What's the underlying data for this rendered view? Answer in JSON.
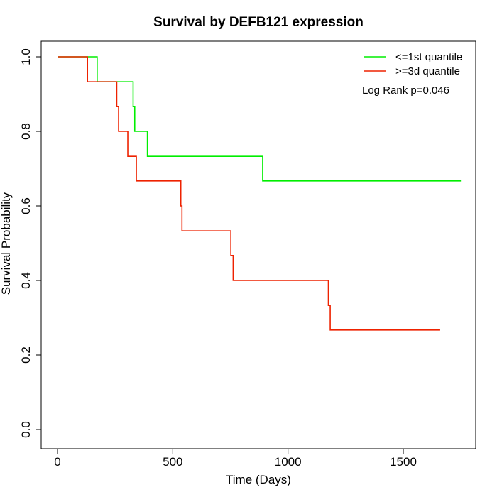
{
  "chart_data": {
    "type": "line",
    "title": "Survival by DEFB121 expression",
    "xlabel": "Time (Days)",
    "ylabel": "Survival Probability",
    "xlim": [
      0,
      1800
    ],
    "ylim": [
      0,
      1.0
    ],
    "x_ticks": [
      0,
      500,
      1000,
      1500
    ],
    "y_ticks": [
      0.0,
      0.2,
      0.4,
      0.6,
      0.8,
      1.0
    ],
    "x_tick_labels": [
      "0",
      "500",
      "1000",
      "1500"
    ],
    "y_tick_labels": [
      "0.0",
      "0.2",
      "0.4",
      "0.6",
      "0.8",
      "1.0"
    ],
    "legend_position": "top-right",
    "annotation": "Log Rank p=0.046",
    "series": [
      {
        "name": "<=1st quantile",
        "color": "#00ee00",
        "steps": [
          [
            0,
            1.0
          ],
          [
            172,
            0.933
          ],
          [
            328,
            0.867
          ],
          [
            335,
            0.8
          ],
          [
            390,
            0.733
          ],
          [
            890,
            0.667
          ],
          [
            1750,
            0.667
          ]
        ]
      },
      {
        "name": ">=3d quantile",
        "color": "#ee2200",
        "steps": [
          [
            0,
            1.0
          ],
          [
            130,
            0.933
          ],
          [
            257,
            0.867
          ],
          [
            265,
            0.8
          ],
          [
            305,
            0.733
          ],
          [
            342,
            0.667
          ],
          [
            535,
            0.6
          ],
          [
            540,
            0.533
          ],
          [
            752,
            0.467
          ],
          [
            762,
            0.4
          ],
          [
            1175,
            0.333
          ],
          [
            1183,
            0.267
          ],
          [
            1660,
            0.267
          ]
        ]
      }
    ]
  }
}
